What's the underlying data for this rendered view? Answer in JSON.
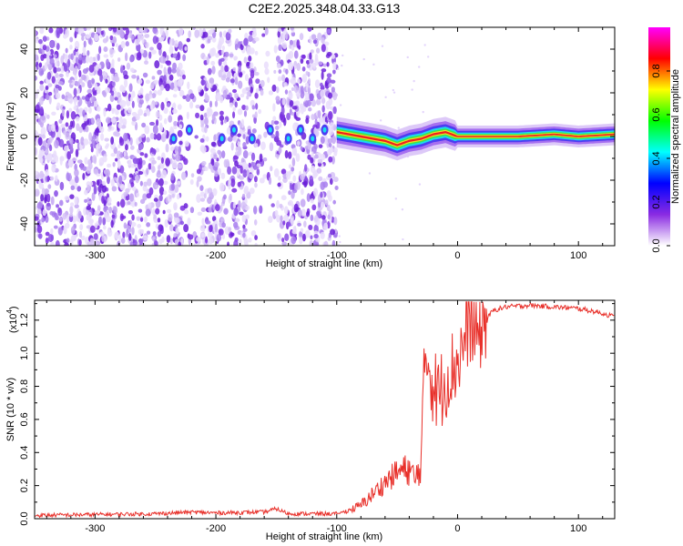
{
  "title": "C2E2.2025.348.04.33.G13",
  "chart_data": [
    {
      "id": "spectrogram",
      "type": "heatmap",
      "xlabel": "Height of straight line (km)",
      "ylabel": "Frequency (Hz)",
      "xlim": [
        -350,
        130
      ],
      "ylim": [
        -50,
        50
      ],
      "xticks": [
        -300,
        -200,
        -100,
        0,
        100
      ],
      "xtick_labels": [
        "-300",
        "-200",
        "-100",
        "0",
        "100"
      ],
      "yticks": [
        -40,
        -20,
        0,
        20,
        40
      ],
      "ytick_labels": [
        "-40",
        "-20",
        "0",
        "20",
        "40"
      ],
      "noise_region_xmax": -100,
      "signal_center_freq": [
        [
          -100,
          2
        ],
        [
          -90,
          1
        ],
        [
          -80,
          0
        ],
        [
          -70,
          -1
        ],
        [
          -60,
          -2
        ],
        [
          -50,
          -4
        ],
        [
          -40,
          -2
        ],
        [
          -30,
          -1
        ],
        [
          -20,
          1
        ],
        [
          -10,
          2
        ],
        [
          0,
          0
        ],
        [
          20,
          0
        ],
        [
          50,
          0
        ],
        [
          80,
          1
        ],
        [
          100,
          0
        ],
        [
          130,
          1
        ]
      ],
      "colorbar": {
        "label": "Normalized spectral amplitude",
        "range": [
          0,
          1
        ],
        "ticks": [
          0.0,
          0.2,
          0.4,
          0.6,
          0.8
        ],
        "tick_labels": [
          "0.0",
          "0.2",
          "0.4",
          "0.6",
          "0.8"
        ],
        "colors": [
          "#ffffff",
          "#8a2be2",
          "#0000ff",
          "#00ffff",
          "#00ff00",
          "#ffff00",
          "#ff0000",
          "#ff00ff"
        ]
      }
    },
    {
      "id": "snr",
      "type": "line",
      "xlabel": "Height of straight line (km)",
      "ylabel": "SNR (10 * v/v)",
      "y_multiplier_label": "(x10",
      "y_multiplier_exp": "4",
      "y_multiplier_close": ")",
      "xlim": [
        -350,
        130
      ],
      "ylim": [
        0,
        1.32
      ],
      "xticks": [
        -300,
        -200,
        -100,
        0,
        100
      ],
      "xtick_labels": [
        "-300",
        "-200",
        "-100",
        "0",
        "100"
      ],
      "yticks": [
        0.0,
        0.2,
        0.4,
        0.6,
        0.8,
        1.0,
        1.2
      ],
      "ytick_labels": [
        "0.0",
        "0.2",
        "0.4",
        "0.6",
        "0.8",
        "1.0",
        "1.2"
      ],
      "line_color": "#e8302a",
      "series": [
        {
          "name": "SNR",
          "points": [
            [
              -350,
              0.02
            ],
            [
              -300,
              0.025
            ],
            [
              -250,
              0.03
            ],
            [
              -220,
              0.04
            ],
            [
              -200,
              0.035
            ],
            [
              -160,
              0.04
            ],
            [
              -150,
              0.06
            ],
            [
              -140,
              0.03
            ],
            [
              -110,
              0.03
            ],
            [
              -100,
              0.03
            ],
            [
              -90,
              0.05
            ],
            [
              -80,
              0.08
            ],
            [
              -70,
              0.15
            ],
            [
              -60,
              0.22
            ],
            [
              -50,
              0.28
            ],
            [
              -40,
              0.3
            ],
            [
              -35,
              0.22
            ],
            [
              -30,
              0.35
            ],
            [
              -27,
              0.95
            ],
            [
              -25,
              1.0
            ],
            [
              -20,
              0.8
            ],
            [
              -15,
              0.75
            ],
            [
              -10,
              0.85
            ],
            [
              -5,
              0.9
            ],
            [
              0,
              0.95
            ],
            [
              5,
              1.05
            ],
            [
              10,
              1.2
            ],
            [
              15,
              1.1
            ],
            [
              20,
              1.15
            ],
            [
              25,
              1.22
            ],
            [
              30,
              1.26
            ],
            [
              40,
              1.28
            ],
            [
              60,
              1.29
            ],
            [
              80,
              1.28
            ],
            [
              100,
              1.27
            ],
            [
              115,
              1.25
            ],
            [
              130,
              1.22
            ]
          ]
        }
      ]
    }
  ]
}
